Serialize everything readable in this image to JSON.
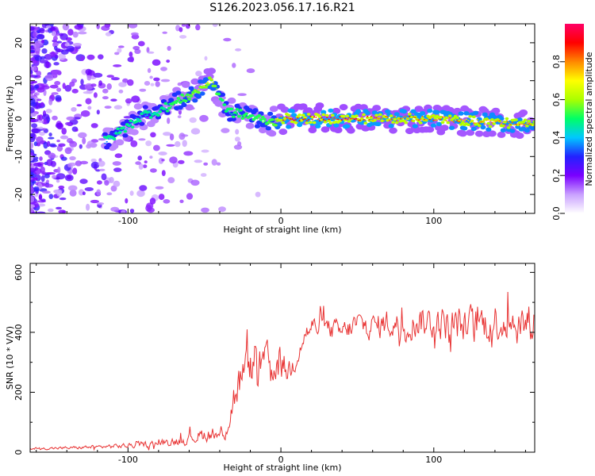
{
  "title": "S126.2023.056.17.16.R21",
  "chart_data": [
    {
      "type": "heatmap",
      "xlabel": "Height of straight line (km)",
      "ylabel": "Frequency (Hz)",
      "xlim": [
        -164,
        166
      ],
      "ylim": [
        -25,
        25
      ],
      "xticks": [
        -100,
        0,
        100
      ],
      "yticks": [
        -20,
        -10,
        0,
        10,
        20
      ],
      "colorbar": {
        "label": "Normalized spectral amplitude",
        "range": [
          0.0,
          1.0
        ],
        "ticks": [
          0.0,
          0.2,
          0.4,
          0.6,
          0.8
        ],
        "colors": [
          "#ffffff",
          "#c9a0ff",
          "#7a00ff",
          "#2222ff",
          "#00c8ff",
          "#00ff66",
          "#aaff00",
          "#ffff00",
          "#ff8800",
          "#ff0000",
          "#ff0066"
        ]
      },
      "ridge": {
        "x": [
          -115,
          -100,
          -90,
          -80,
          -70,
          -60,
          -52,
          -45,
          -40,
          -35,
          -25,
          -15,
          -5,
          0,
          10,
          20,
          40,
          60,
          80,
          100,
          120,
          140,
          160,
          166
        ],
        "freq_hz": [
          -6,
          -2,
          1,
          2,
          4,
          6,
          8,
          10,
          6,
          2,
          1,
          0,
          -1,
          0,
          0,
          0,
          0,
          0,
          0,
          0,
          -0.5,
          -1,
          -1.5,
          -1.5
        ],
        "amplitude": [
          0.4,
          0.45,
          0.4,
          0.45,
          0.55,
          0.6,
          0.7,
          0.75,
          0.55,
          0.5,
          0.55,
          0.55,
          0.6,
          0.85,
          0.95,
          0.95,
          0.95,
          0.9,
          0.9,
          0.9,
          0.85,
          0.85,
          0.85,
          0.8
        ]
      }
    },
    {
      "type": "line",
      "xlabel": "Height of straight line (km)",
      "ylabel": "SNR (10 * V/V)",
      "xlim": [
        -164,
        166
      ],
      "ylim": [
        0,
        630
      ],
      "xticks": [
        -100,
        0,
        100
      ],
      "yticks": [
        0,
        200,
        400,
        600
      ],
      "color": "#e83232",
      "envelope": {
        "x": [
          -164,
          -140,
          -120,
          -100,
          -80,
          -60,
          -50,
          -42,
          -38,
          -34,
          -30,
          -25,
          -20,
          -10,
          0,
          5,
          10,
          15,
          20,
          30,
          40,
          50,
          60,
          70,
          80,
          90,
          100,
          110,
          120,
          130,
          140,
          150,
          160,
          166
        ],
        "mean": [
          12,
          14,
          18,
          22,
          30,
          45,
          60,
          55,
          70,
          120,
          200,
          260,
          280,
          300,
          290,
          270,
          320,
          390,
          420,
          410,
          400,
          430,
          420,
          430,
          420,
          440,
          430,
          430,
          420,
          430,
          440,
          430,
          430,
          440
        ],
        "spread": [
          6,
          8,
          10,
          14,
          20,
          30,
          40,
          35,
          60,
          90,
          110,
          120,
          110,
          100,
          90,
          80,
          60,
          60,
          60,
          60,
          60,
          70,
          70,
          80,
          80,
          90,
          90,
          100,
          100,
          100,
          110,
          110,
          120,
          110
        ]
      }
    }
  ]
}
